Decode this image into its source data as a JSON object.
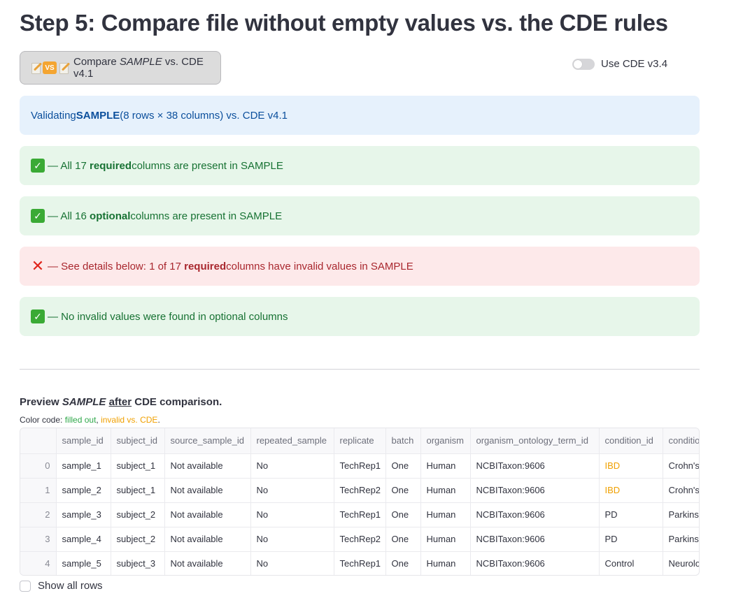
{
  "title": "Step 5: Compare file without empty values vs. the CDE rules",
  "compare_button": {
    "emoji": [
      "memo-icon",
      "vs-icon",
      "memo-icon"
    ],
    "vs_text": "VS",
    "label_pre": "Compare ",
    "label_em": "SAMPLE",
    "label_post": " vs. CDE v4.1"
  },
  "toggle": {
    "label": "Use CDE v3.4",
    "checked": false
  },
  "alerts": {
    "info": {
      "pre": "Validating ",
      "bold": "SAMPLE",
      "post": " (8 rows × 38 columns) vs. CDE v4.1"
    },
    "required_present": {
      "icon": "check-icon",
      "pre": " — All 17 ",
      "bold": "required",
      "post": " columns are present in SAMPLE"
    },
    "optional_present": {
      "icon": "check-icon",
      "pre": " — All 16 ",
      "bold": "optional",
      "post": " columns are present in SAMPLE"
    },
    "required_invalid": {
      "icon": "cross-icon",
      "pre": " — See details below: 1 of 17 ",
      "bold": "required",
      "post": " columns have invalid values in SAMPLE"
    },
    "optional_valid": {
      "icon": "check-icon",
      "text": " — No invalid values were found in optional columns"
    }
  },
  "preview": {
    "title_pre": "Preview ",
    "title_em": "SAMPLE",
    "title_sp": " ",
    "title_u": "after",
    "title_post": " CDE comparison.",
    "color_code_label": "Color code: ",
    "color_filled": "filled out",
    "color_sep": ", ",
    "color_invalid": "invalid vs. CDE",
    "color_end": ".",
    "colors": {
      "filled": "#2fa84a",
      "invalid": "#f0a000"
    }
  },
  "table": {
    "columns": [
      "",
      "sample_id",
      "subject_id",
      "source_sample_id",
      "repeated_sample",
      "replicate",
      "batch",
      "organism",
      "organism_ontology_term_id",
      "condition_id",
      "conditio"
    ],
    "rows": [
      [
        "0",
        "sample_1",
        "subject_1",
        "Not available",
        "No",
        "TechRep1",
        "One",
        "Human",
        "NCBITaxon:9606",
        "IBD",
        "Crohn's"
      ],
      [
        "1",
        "sample_2",
        "subject_1",
        "Not available",
        "No",
        "TechRep2",
        "One",
        "Human",
        "NCBITaxon:9606",
        "IBD",
        "Crohn's"
      ],
      [
        "2",
        "sample_3",
        "subject_2",
        "Not available",
        "No",
        "TechRep1",
        "One",
        "Human",
        "NCBITaxon:9606",
        "PD",
        "Parkinso"
      ],
      [
        "3",
        "sample_4",
        "subject_2",
        "Not available",
        "No",
        "TechRep2",
        "One",
        "Human",
        "NCBITaxon:9606",
        "PD",
        "Parkinso"
      ],
      [
        "4",
        "sample_5",
        "subject_3",
        "Not available",
        "No",
        "TechRep1",
        "One",
        "Human",
        "NCBITaxon:9606",
        "Control",
        "Neurolo"
      ]
    ],
    "invalid_cells": [
      [
        0,
        9
      ],
      [
        1,
        9
      ]
    ]
  },
  "show_all_rows": {
    "label": "Show all rows",
    "checked": false
  }
}
